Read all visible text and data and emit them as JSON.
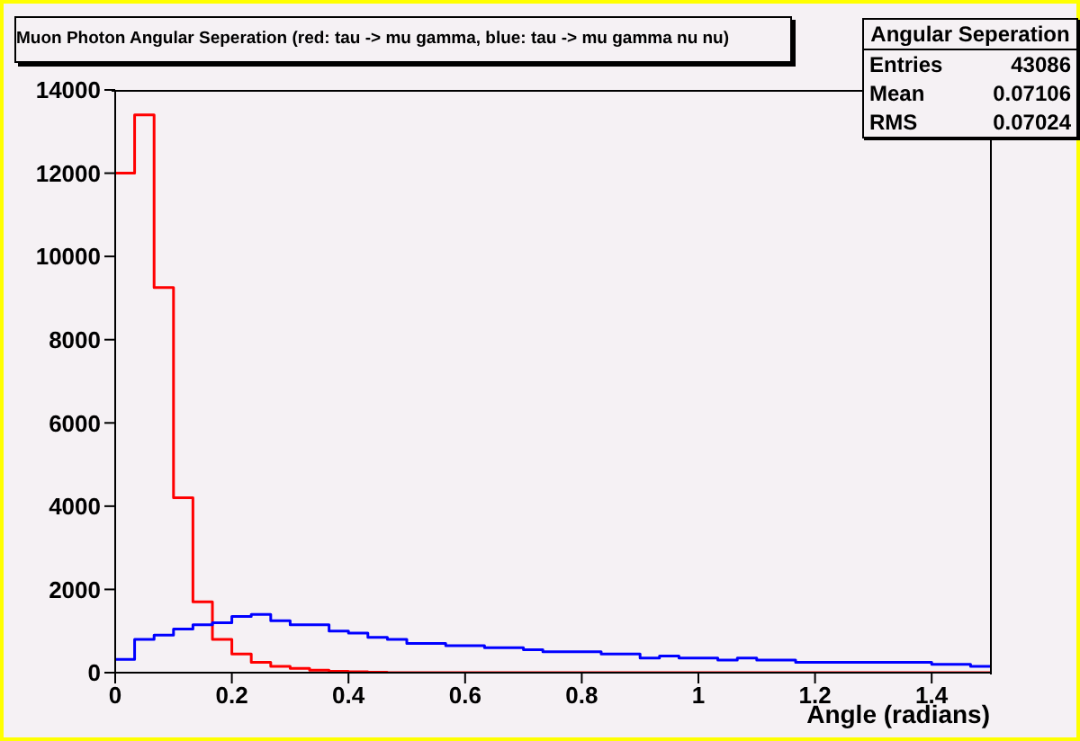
{
  "chart_data": {
    "type": "histogram",
    "title": "Muon Photon Angular Seperation (red: tau -> mu gamma, blue: tau -> mu gamma nu nu)",
    "xlabel": "Angle (radians)",
    "bins": [
      0,
      0.0333,
      0.0667,
      0.1,
      0.1333,
      0.1667,
      0.2,
      0.2333,
      0.2667,
      0.3,
      0.3333,
      0.3667,
      0.4,
      0.4333,
      0.4667,
      0.5,
      0.5333,
      0.5667,
      0.6,
      0.6333,
      0.6667,
      0.7,
      0.7333,
      0.7667,
      0.8,
      0.8333,
      0.8667,
      0.9,
      0.9333,
      0.9667,
      1,
      1.0333,
      1.0667,
      1.1,
      1.1333,
      1.1667,
      1.2,
      1.2333,
      1.2667,
      1.3,
      1.3333,
      1.3667,
      1.4,
      1.4333,
      1.4667,
      1.5
    ],
    "series": [
      {
        "color": "#ff0000",
        "values": [
          12000,
          13400,
          9250,
          4200,
          1700,
          800,
          450,
          250,
          150,
          100,
          60,
          30,
          20,
          10,
          0,
          0,
          0,
          0,
          0,
          0,
          0,
          0,
          0,
          0,
          0,
          0,
          0,
          0,
          0,
          0,
          0,
          0,
          0,
          0,
          0,
          0,
          0,
          0,
          0,
          0,
          0,
          0,
          0,
          0,
          0
        ]
      },
      {
        "color": "#0000ff",
        "values": [
          320,
          800,
          900,
          1050,
          1150,
          1200,
          1350,
          1400,
          1250,
          1150,
          1150,
          1000,
          950,
          850,
          800,
          700,
          700,
          650,
          650,
          600,
          600,
          550,
          500,
          500,
          500,
          450,
          450,
          350,
          400,
          350,
          350,
          300,
          350,
          300,
          300,
          250,
          250,
          250,
          250,
          250,
          250,
          250,
          200,
          200,
          150
        ]
      }
    ],
    "xlim": [
      0,
      1.5
    ],
    "xticks": [
      0,
      0.2,
      0.4,
      0.6,
      0.8,
      1,
      1.2,
      1.4
    ],
    "ylim": [
      0,
      14000
    ],
    "yticks": [
      0,
      2000,
      4000,
      6000,
      8000,
      10000,
      12000,
      14000
    ],
    "grid": false,
    "legend": false,
    "annotations": [
      "Angular Seperation",
      "Entries",
      "43086",
      "Mean",
      "0.07106",
      "RMS",
      "0.07024"
    ]
  }
}
